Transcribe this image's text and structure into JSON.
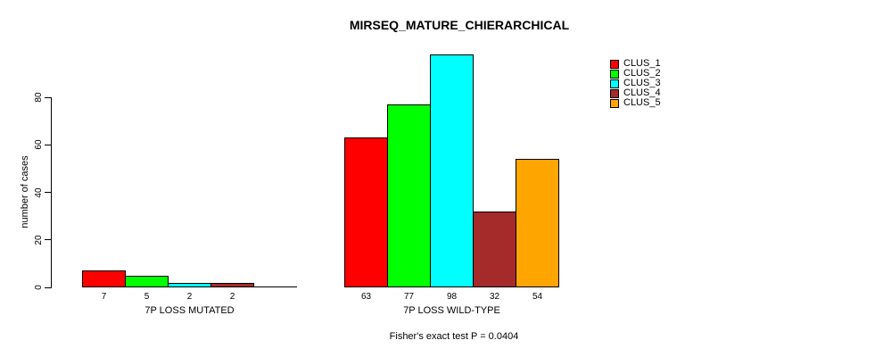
{
  "chart_data": {
    "type": "bar",
    "title": "MIRSEQ_MATURE_CHIERARCHICAL",
    "ylabel": "number of cases",
    "xlabel": "",
    "ylim": [
      0,
      100
    ],
    "yticks": [
      0,
      20,
      40,
      60,
      80
    ],
    "grid": false,
    "legend_position": "right",
    "categories": [
      "7P LOSS MUTATED",
      "7P LOSS WILD-TYPE"
    ],
    "series": [
      {
        "name": "CLUS_1",
        "color": "#FF0000",
        "values": [
          7,
          63
        ]
      },
      {
        "name": "CLUS_2",
        "color": "#00FF00",
        "values": [
          5,
          77
        ]
      },
      {
        "name": "CLUS_3",
        "color": "#00FFFF",
        "values": [
          2,
          98
        ]
      },
      {
        "name": "CLUS_4",
        "color": "#A52A2A",
        "values": [
          2,
          32
        ]
      },
      {
        "name": "CLUS_5",
        "color": "#FFA500",
        "values": [
          0,
          54
        ]
      }
    ],
    "bar_labels": [
      [
        "7",
        "5",
        "2",
        "2",
        ""
      ],
      [
        "63",
        "77",
        "98",
        "32",
        "54"
      ]
    ],
    "annotation": "Fisher's exact test P = 0.0404"
  }
}
